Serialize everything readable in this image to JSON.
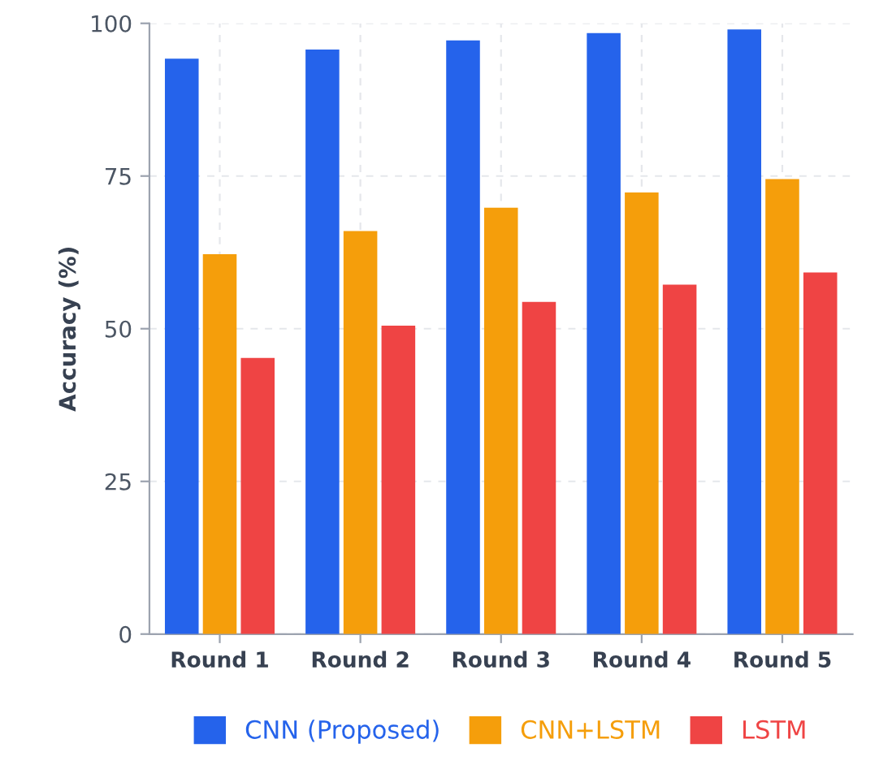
{
  "chart_data": {
    "type": "bar",
    "ylabel": "Accuracy (%)",
    "categories": [
      "Round 1",
      "Round 2",
      "Round 3",
      "Round 4",
      "Round 5"
    ],
    "series": [
      {
        "name": "CNN (Proposed)",
        "color": "#2563eb",
        "values": [
          94.2,
          95.7,
          97.2,
          98.4,
          99
        ]
      },
      {
        "name": "CNN+LSTM",
        "color": "#f59e0b",
        "values": [
          62.2,
          66,
          69.8,
          72.3,
          74.5
        ]
      },
      {
        "name": "LSTM",
        "color": "#ef4444",
        "values": [
          45.2,
          50.5,
          54.4,
          57.2,
          59.2
        ]
      }
    ],
    "ylim": [
      0,
      100
    ],
    "yticks": [
      0,
      25,
      50,
      75,
      100
    ],
    "grid": true,
    "legend": "bottom"
  }
}
